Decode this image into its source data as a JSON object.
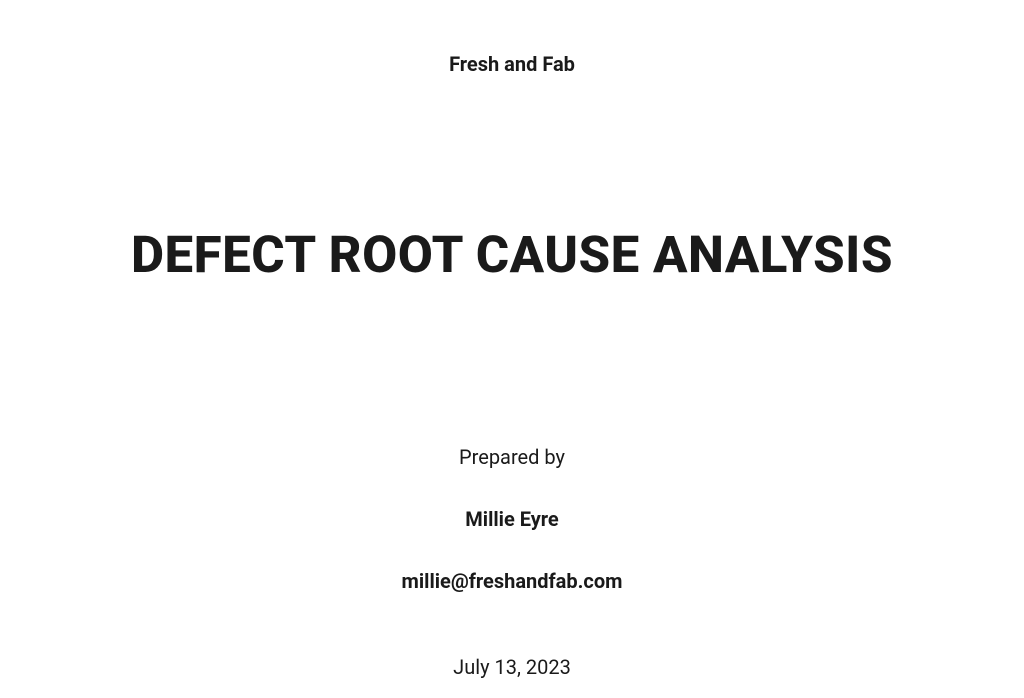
{
  "company_name": "Fresh and Fab",
  "document_title": "DEFECT ROOT CAUSE ANALYSIS",
  "prepared_by_label": "Prepared by",
  "author_name": "Millie Eyre",
  "author_email": "millie@freshandfab.com",
  "document_date": "July 13, 2023"
}
